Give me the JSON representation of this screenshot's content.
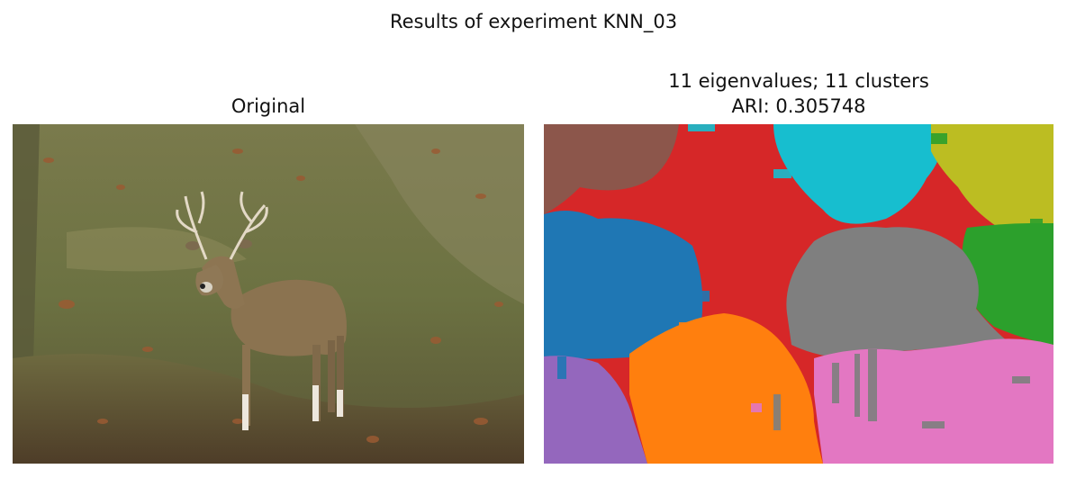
{
  "figure": {
    "suptitle": "Results of experiment KNN_03"
  },
  "panels": {
    "left": {
      "title": "Original"
    },
    "right": {
      "title_line1": "11 eigenvalues; 11 clusters",
      "title_line2": "ARI: 0.305748"
    }
  },
  "colors": {
    "tab_blue": "#1f77b4",
    "tab_orange": "#ff7f0e",
    "tab_green": "#2ca02c",
    "tab_red": "#d62728",
    "tab_purple": "#9467bd",
    "tab_brown": "#8c564b",
    "tab_pink": "#e377c2",
    "tab_gray": "#7f7f7f",
    "tab_olive": "#bcbd22",
    "tab_cyan": "#17becf"
  }
}
